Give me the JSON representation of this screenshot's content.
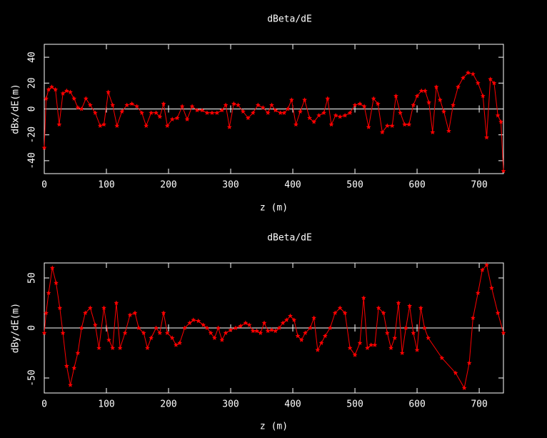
{
  "chart_data": [
    {
      "type": "line",
      "title": "dBeta/dE",
      "xlabel": "z (m)",
      "ylabel": "dBx/dE(m)",
      "x": [
        0,
        3,
        7,
        12,
        18,
        24,
        30,
        36,
        42,
        48,
        54,
        60,
        67,
        74,
        82,
        90,
        96,
        103,
        110,
        117,
        125,
        133,
        141,
        149,
        157,
        164,
        172,
        180,
        186,
        192,
        198,
        206,
        214,
        222,
        230,
        238,
        246,
        254,
        262,
        270,
        278,
        286,
        292,
        298,
        305,
        312,
        320,
        328,
        336,
        344,
        352,
        360,
        366,
        372,
        380,
        386,
        392,
        398,
        405,
        412,
        419,
        427,
        434,
        442,
        450,
        456,
        462,
        469,
        476,
        484,
        492,
        500,
        508,
        515,
        522,
        530,
        537,
        544,
        552,
        560,
        566,
        573,
        580,
        587,
        594,
        600,
        607,
        613,
        619,
        625,
        631,
        637,
        643,
        651,
        658,
        666,
        674,
        682,
        690,
        698,
        706,
        712,
        718,
        724,
        730,
        735,
        739
      ],
      "series": [
        {
          "color": "#ff0000",
          "values": [
            -30,
            8,
            15,
            17,
            15,
            -12,
            12,
            14,
            13,
            8,
            1,
            0,
            8,
            3,
            -3,
            -13,
            -12,
            13,
            3,
            -13,
            -2,
            3,
            4,
            2,
            -3,
            -13,
            -3,
            -3,
            -6,
            4,
            -13,
            -8,
            -7,
            2,
            -8,
            2,
            -1,
            -1,
            -3,
            -3,
            -3,
            -1,
            3,
            -14,
            4,
            3,
            -2,
            -7,
            -3,
            3,
            1,
            -3,
            3,
            -1,
            -3,
            -3,
            0,
            7,
            -12,
            -2,
            7,
            -7,
            -10,
            -5,
            -3,
            8,
            -12,
            -5,
            -6,
            -5,
            -3,
            3,
            4,
            2,
            -14,
            8,
            4,
            -18,
            -13,
            -13,
            10,
            -3,
            -12,
            -12,
            3,
            10,
            14,
            14,
            5,
            -18,
            17,
            7,
            -2,
            -17,
            3,
            17,
            24,
            28,
            27,
            20,
            10,
            -22,
            23,
            20,
            -5,
            -10,
            -48
          ]
        }
      ],
      "xlim": [
        0,
        739
      ],
      "ylim": [
        -50,
        50
      ],
      "xticks": [
        0,
        100,
        200,
        300,
        400,
        500,
        600,
        700
      ],
      "yticks": [
        -40,
        -20,
        0,
        20,
        40
      ],
      "zero_line": true
    },
    {
      "type": "line",
      "title": "dBeta/dE",
      "xlabel": "z (m)",
      "ylabel": "dBy/dE(m)",
      "x": [
        0,
        3,
        7,
        13,
        19,
        25,
        30,
        36,
        42,
        48,
        54,
        60,
        66,
        74,
        82,
        88,
        96,
        104,
        110,
        116,
        122,
        130,
        138,
        146,
        152,
        160,
        166,
        172,
        180,
        186,
        192,
        198,
        206,
        212,
        218,
        226,
        234,
        240,
        248,
        256,
        262,
        268,
        274,
        280,
        286,
        292,
        300,
        308,
        316,
        324,
        330,
        336,
        342,
        348,
        354,
        360,
        366,
        372,
        378,
        384,
        390,
        396,
        402,
        408,
        414,
        420,
        428,
        434,
        440,
        446,
        452,
        460,
        468,
        476,
        484,
        492,
        500,
        508,
        514,
        520,
        526,
        532,
        538,
        546,
        552,
        558,
        564,
        570,
        576,
        582,
        588,
        594,
        600,
        606,
        612,
        618,
        640,
        662,
        676,
        684,
        690,
        698,
        705,
        712,
        720,
        730,
        739
      ],
      "series": [
        {
          "color": "#ff0000",
          "values": [
            -5,
            15,
            35,
            60,
            45,
            20,
            -5,
            -38,
            -57,
            -40,
            -25,
            0,
            15,
            20,
            3,
            -20,
            20,
            -12,
            -20,
            25,
            -20,
            -5,
            13,
            15,
            0,
            -5,
            -20,
            -10,
            0,
            -5,
            15,
            -5,
            -10,
            -17,
            -15,
            0,
            5,
            8,
            7,
            3,
            0,
            -5,
            -10,
            0,
            -12,
            -5,
            -2,
            0,
            2,
            5,
            3,
            -3,
            -3,
            -5,
            5,
            -3,
            -2,
            -3,
            0,
            5,
            8,
            12,
            8,
            -8,
            -12,
            -5,
            0,
            10,
            -22,
            -15,
            -8,
            0,
            15,
            20,
            15,
            -20,
            -27,
            -15,
            30,
            -20,
            -17,
            -17,
            20,
            15,
            -5,
            -20,
            -10,
            25,
            -25,
            0,
            22,
            -5,
            -22,
            20,
            0,
            -10,
            -30,
            -45,
            -60,
            -35,
            10,
            35,
            58,
            63,
            40,
            15,
            -5
          ]
        }
      ],
      "xlim": [
        0,
        739
      ],
      "ylim": [
        -65,
        65
      ],
      "xticks": [
        0,
        100,
        200,
        300,
        400,
        500,
        600,
        700
      ],
      "yticks": [
        -50,
        0,
        50
      ],
      "zero_line": true
    }
  ]
}
